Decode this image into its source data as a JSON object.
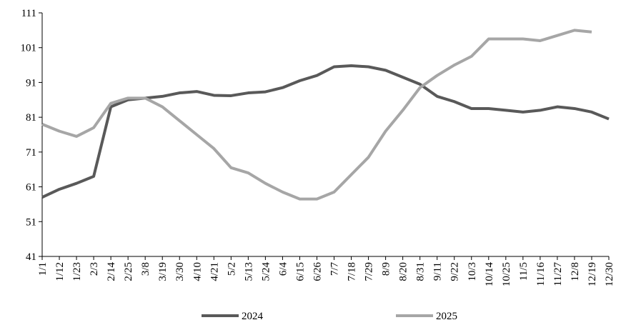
{
  "chart_data": {
    "type": "line",
    "categories": [
      "1/1",
      "1/12",
      "1/23",
      "2/3",
      "2/14",
      "2/25",
      "3/8",
      "3/19",
      "3/30",
      "4/10",
      "4/21",
      "5/2",
      "5/13",
      "5/24",
      "6/4",
      "6/15",
      "6/26",
      "7/7",
      "7/18",
      "7/29",
      "8/9",
      "8/20",
      "8/31",
      "9/11",
      "9/22",
      "10/3",
      "10/14",
      "10/25",
      "11/5",
      "11/16",
      "11/27",
      "12/8",
      "12/19",
      "12/30"
    ],
    "series": [
      {
        "name": "2024",
        "color": "#595959",
        "values": [
          58,
          60.3,
          62,
          64,
          84,
          86,
          86.5,
          87,
          88,
          88.4,
          87.3,
          87.2,
          88,
          88.3,
          89.5,
          91.5,
          93,
          95.5,
          95.8,
          95.5,
          94.5,
          92.5,
          90.5,
          87,
          85.5,
          83.5,
          83.5,
          83,
          82.5,
          83,
          84,
          83.5,
          82.5,
          80.5
        ]
      },
      {
        "name": "2025",
        "color": "#a6a6a6",
        "values": [
          79,
          77,
          75.5,
          78,
          85,
          86.5,
          86.5,
          84,
          80,
          76,
          72,
          66.5,
          65,
          62,
          59.5,
          57.5,
          57.5,
          59.5,
          64.5,
          69.5,
          77,
          83,
          89.5,
          93,
          96,
          98.5,
          103.5,
          103.5,
          103.5,
          103,
          104.5,
          106,
          105.5,
          null
        ]
      }
    ],
    "ylim": [
      41,
      111
    ],
    "yticks": [
      41,
      51,
      61,
      71,
      81,
      91,
      101,
      111
    ],
    "legend": "bottom"
  }
}
